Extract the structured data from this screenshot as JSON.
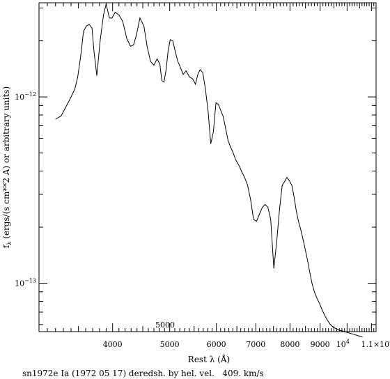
{
  "chart_data": {
    "type": "line",
    "xscale": "log",
    "yscale": "log",
    "xlim": [
      3000,
      11200
    ],
    "ylim": [
      5.5e-14,
      3.2e-12
    ],
    "grid": false,
    "xlabel": "Rest λ (Å)",
    "ylabel": "f",
    "ylabel_sub": "λ",
    "ylabel_rest": " (ergs/(s cm**2 A) or arbitrary units)",
    "caption": "sn1972e Ia (1972 05 17) deredsh. by hel. vel.   409. km/s",
    "annotation": "5000",
    "x_ticks": [
      {
        "value": 4000,
        "label": "4000"
      },
      {
        "value": 5000,
        "label": "5000"
      },
      {
        "value": 6000,
        "label": "6000"
      },
      {
        "value": 7000,
        "label": "7000"
      },
      {
        "value": 8000,
        "label": "8000"
      },
      {
        "value": 9000,
        "label": "9000"
      },
      {
        "value": 10000,
        "base": "10",
        "exp": "4"
      },
      {
        "value": 11000,
        "mant": "1.1×10",
        "exp": "4"
      }
    ],
    "y_ticks": [
      {
        "value": 1e-12,
        "base": "10",
        "exp": "−12"
      },
      {
        "value": 1e-13,
        "base": "10",
        "exp": "−13"
      }
    ],
    "series": [
      {
        "x": [
          3200,
          3270,
          3330,
          3390,
          3450,
          3490,
          3530,
          3570,
          3610,
          3650,
          3690,
          3720,
          3760,
          3810,
          3860,
          3900,
          3950,
          3990,
          4040,
          4100,
          4160,
          4230,
          4290,
          4340,
          4390,
          4450,
          4520,
          4580,
          4640,
          4700,
          4760,
          4810,
          4850,
          4890,
          4930,
          4970,
          5010,
          5060,
          5110,
          5160,
          5210,
          5270,
          5330,
          5400,
          5470,
          5530,
          5580,
          5630,
          5690,
          5750,
          5810,
          5870,
          5930,
          5990,
          6050,
          6110,
          6160,
          6220,
          6280,
          6340,
          6400,
          6470,
          6550,
          6630,
          6700,
          6780,
          6860,
          6940,
          7020,
          7100,
          7180,
          7260,
          7340,
          7420,
          7510,
          7600,
          7680,
          7760,
          7830,
          7900,
          7980,
          8060,
          8130,
          8200,
          8270,
          8340,
          8410,
          8480,
          8560,
          8640,
          8720,
          8800,
          8890,
          8980,
          9070,
          9170,
          9270,
          9370,
          9480,
          9590,
          9700,
          9800,
          9900,
          10000,
          10100,
          10200,
          10300,
          10400,
          10500,
          10620
        ],
        "y": [
          7.6e-13,
          7.9e-13,
          8.8e-13,
          9.8e-13,
          1.1e-12,
          1.28e-12,
          1.65e-12,
          2.25e-12,
          2.4e-12,
          2.45e-12,
          2.34e-12,
          1.75e-12,
          1.3e-12,
          2e-12,
          2.75e-12,
          3.15e-12,
          2.65e-12,
          2.65e-12,
          2.85e-12,
          2.75e-12,
          2.55e-12,
          2.05e-12,
          1.87e-12,
          1.9e-12,
          2.15e-12,
          2.65e-12,
          2.4e-12,
          1.85e-12,
          1.55e-12,
          1.48e-12,
          1.6e-12,
          1.5e-12,
          1.22e-12,
          1.2e-12,
          1.4e-12,
          1.78e-12,
          2.03e-12,
          2e-12,
          1.75e-12,
          1.55e-12,
          1.45e-12,
          1.32e-12,
          1.38e-12,
          1.28e-12,
          1.25e-12,
          1.17e-12,
          1.32e-12,
          1.4e-12,
          1.35e-12,
          1.1e-12,
          8.3e-13,
          5.6e-13,
          6.5e-13,
          9.3e-13,
          9.1e-13,
          8.4e-13,
          7.9e-13,
          6.8e-13,
          5.85e-13,
          5.4e-13,
          5.05e-13,
          4.6e-13,
          4.3e-13,
          3.95e-13,
          3.7e-13,
          3.35e-13,
          2.8e-13,
          2.2e-13,
          2.15e-13,
          2.35e-13,
          2.55e-13,
          2.65e-13,
          2.55e-13,
          2.2e-13,
          1.2e-13,
          1.7e-13,
          2.5e-13,
          3.35e-13,
          3.5e-13,
          3.7e-13,
          3.55e-13,
          3.35e-13,
          2.9e-13,
          2.45e-13,
          2.15e-13,
          1.95e-13,
          1.75e-13,
          1.55e-13,
          1.35e-13,
          1.15e-13,
          1e-13,
          9e-14,
          8.3e-14,
          7.8e-14,
          7.2e-14,
          6.7e-14,
          6.3e-14,
          6e-14,
          5.8e-14,
          5.7e-14,
          5.6e-14,
          5.55e-14,
          5.5e-14,
          5.45e-14,
          5.4e-14,
          5.35e-14,
          5.3e-14,
          5.25e-14,
          5.2e-14,
          5.15e-14
        ]
      }
    ]
  }
}
